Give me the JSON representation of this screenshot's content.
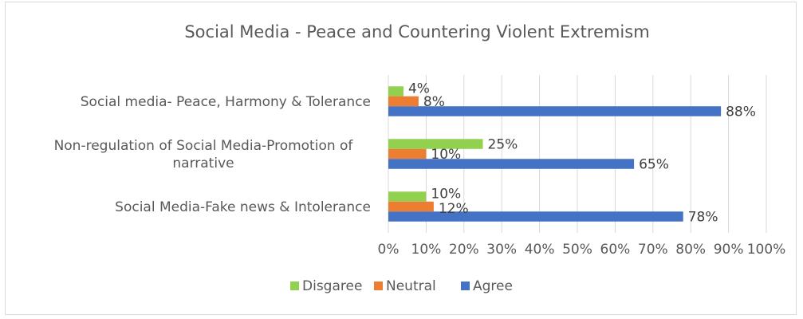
{
  "chart_data": {
    "type": "bar",
    "orientation": "horizontal",
    "title": "Social Media - Peace and Countering Violent Extremism",
    "categories": [
      "Social media- Peace, Harmony & Tolerance",
      "Non-regulation of Social Media-Promotion of narrative",
      "Social Media-Fake news & Intolerance"
    ],
    "series": [
      {
        "name": "Disgaree",
        "color": "#92d050",
        "values": [
          4,
          25,
          10
        ],
        "labels": [
          "4%",
          "25%",
          "10%"
        ]
      },
      {
        "name": "Neutral",
        "color": "#ed7d31",
        "values": [
          8,
          10,
          12
        ],
        "labels": [
          "8%",
          "10%",
          "12%"
        ]
      },
      {
        "name": "Agree",
        "color": "#4472c4",
        "values": [
          88,
          65,
          78
        ],
        "labels": [
          "88%",
          "65%",
          "78%"
        ]
      }
    ],
    "xlim": [
      0,
      100
    ],
    "x_ticks": [
      "0%",
      "10%",
      "20%",
      "30%",
      "40%",
      "50%",
      "60%",
      "70%",
      "80%",
      "90%",
      "100%"
    ],
    "grid": "vertical",
    "legend": "bottom"
  }
}
